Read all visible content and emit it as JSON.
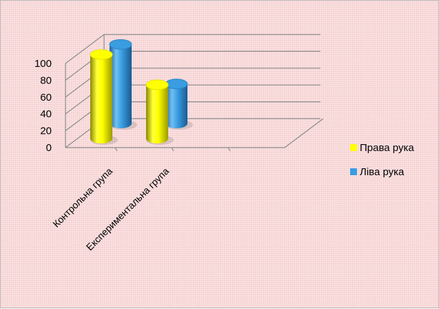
{
  "chart_data": {
    "type": "bar",
    "style": "3d-cylinder",
    "title": "",
    "xlabel": "",
    "ylabel": "",
    "categories": [
      "Контрольна група",
      "Експериментальна група"
    ],
    "series": [
      {
        "name": "Права рука",
        "values": [
          100,
          64
        ],
        "color": "#ffff00"
      },
      {
        "name": "Ліва рука",
        "values": [
          94,
          47
        ],
        "color": "#3a9de0"
      }
    ],
    "ylim": [
      0,
      100
    ],
    "yticks": [
      "0",
      "20",
      "40",
      "60",
      "80",
      "100"
    ],
    "grid": true,
    "legend": "right"
  }
}
